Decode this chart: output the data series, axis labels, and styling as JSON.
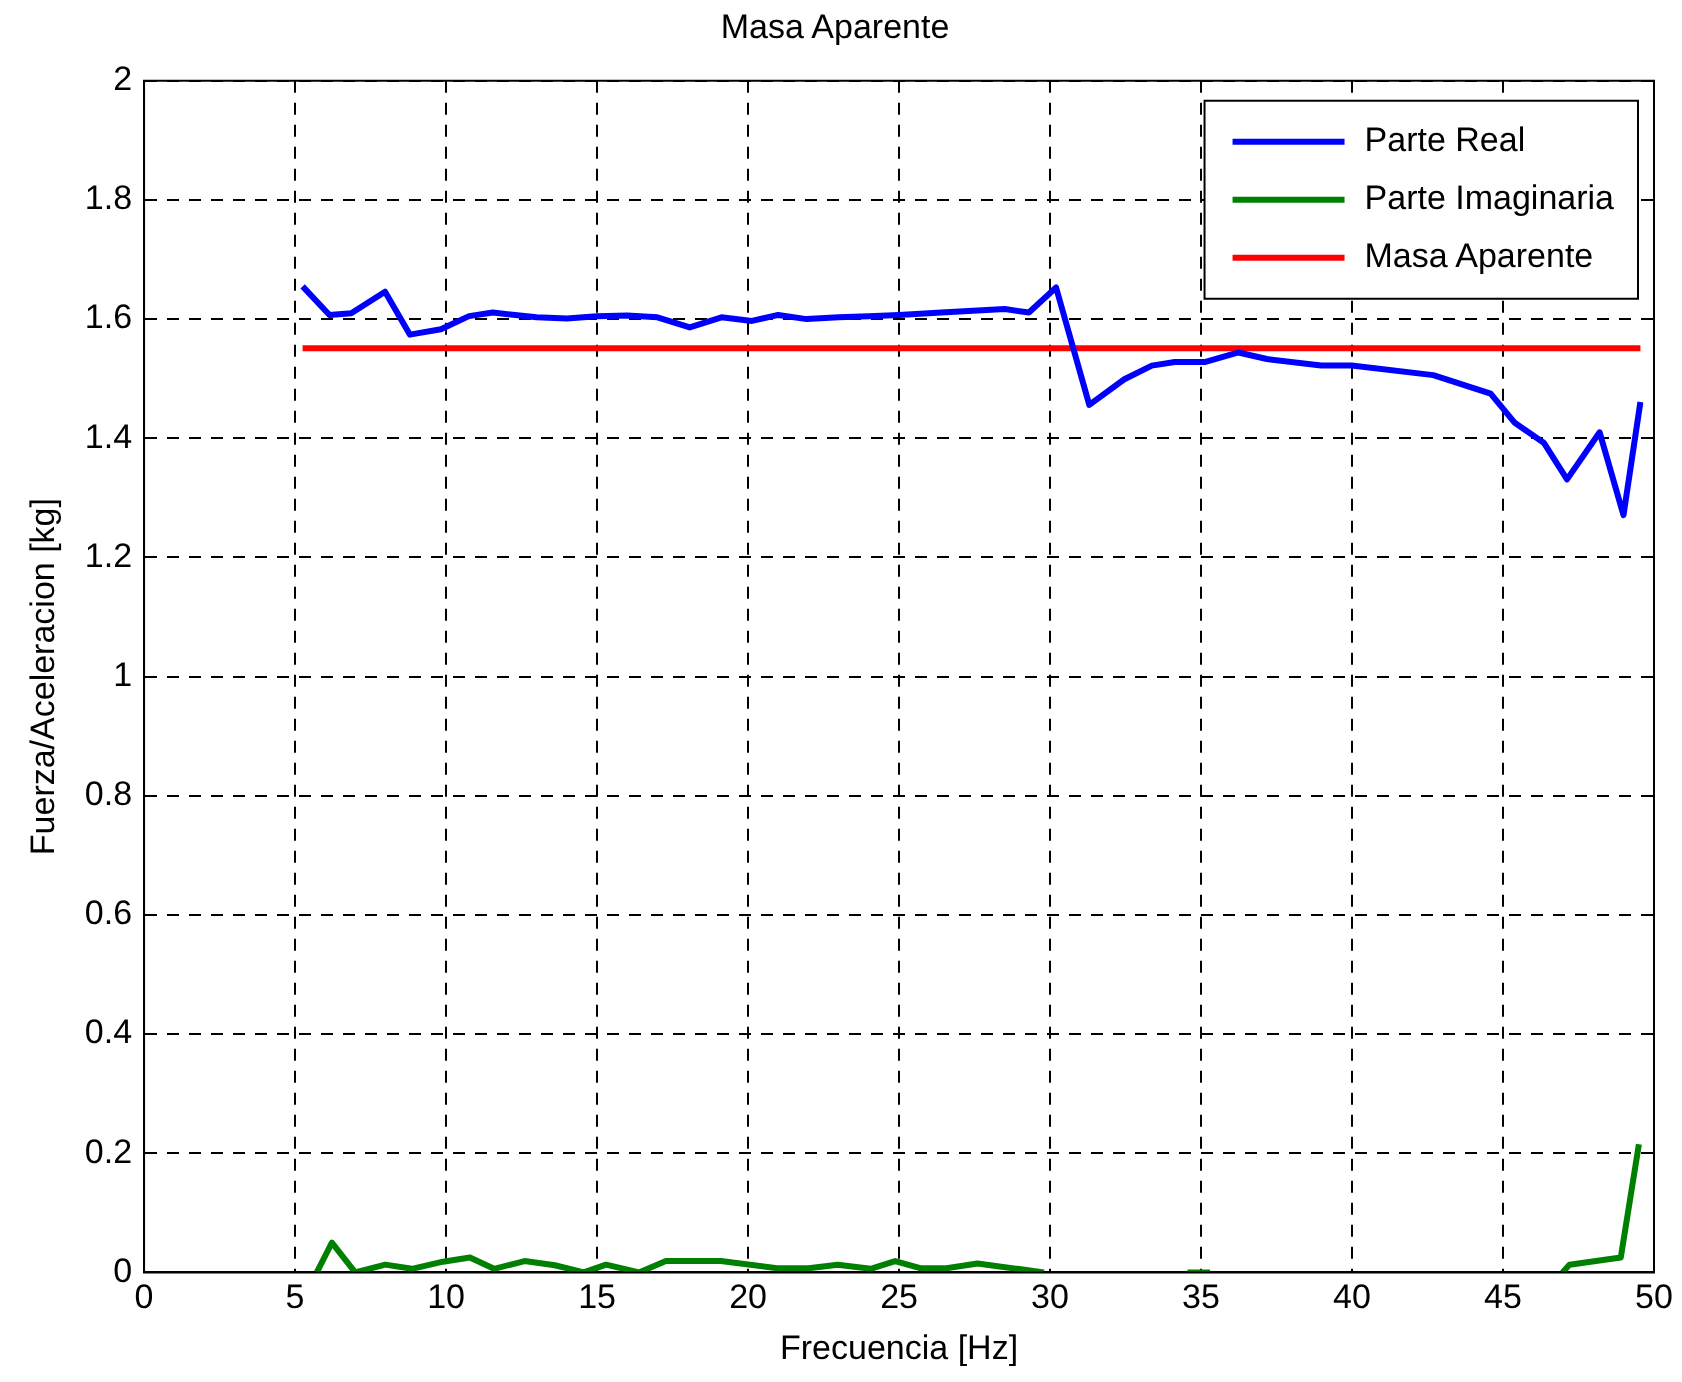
{
  "chart_data": {
    "type": "line",
    "title": "Masa Aparente",
    "xlabel": "Frecuencia [Hz]",
    "ylabel": "Fuerza/Aceleracion [kg]",
    "xlim": [
      0,
      50
    ],
    "xticks": [
      0,
      5,
      10,
      15,
      20,
      25,
      30,
      35,
      40,
      45,
      50
    ],
    "ylim": [
      0,
      2
    ],
    "yticks": [
      0,
      0.2,
      0.4,
      0.6,
      0.8,
      1,
      1.2,
      1.4,
      1.6,
      1.8,
      2
    ],
    "grid": true,
    "legend": "top right",
    "line_style": "solid",
    "marker": "none",
    "series": [
      {
        "name": "Parte Real",
        "color": "#0000ff",
        "x": [
          5.25,
          6.14,
          6.86,
          7.98,
          8.8,
          9.83,
          10.76,
          11.55,
          13,
          14,
          15,
          16,
          17,
          18.07,
          19.12,
          20.13,
          21,
          21.94,
          23,
          24,
          25,
          26.4,
          28.5,
          29.3,
          30.2,
          31.3,
          32.46,
          33.37,
          34.13,
          35.12,
          36.24,
          37.18,
          38.98,
          39.99,
          42.69,
          44.59,
          45.39,
          46.36,
          47.12,
          48.2,
          48.99,
          49.55
        ],
        "values": [
          1.655,
          1.607,
          1.61,
          1.646,
          1.574,
          1.583,
          1.605,
          1.611,
          1.603,
          1.601,
          1.605,
          1.606,
          1.603,
          1.586,
          1.603,
          1.597,
          1.607,
          1.6,
          1.603,
          1.605,
          1.607,
          1.611,
          1.617,
          1.611,
          1.653,
          1.456,
          1.499,
          1.522,
          1.528,
          1.528,
          1.544,
          1.533,
          1.522,
          1.522,
          1.506,
          1.475,
          1.426,
          1.392,
          1.331,
          1.41,
          1.271,
          1.461
        ]
      },
      {
        "name": "Parte Imaginaria",
        "color": "#008000",
        "x": [
          5.72,
          6.22,
          6.99,
          7.99,
          8.87,
          9.9,
          10.79,
          11.59,
          12.6,
          13.6,
          14.56,
          15.3,
          16.39,
          17.28,
          19.1,
          20.96,
          22,
          22.97,
          24.06,
          24.87,
          25.7,
          26.57,
          27.6,
          29.8,
          32,
          34.55,
          35.3,
          41,
          46.97,
          47.2,
          48.9,
          49.5
        ],
        "values": [
          0,
          0.05,
          0,
          0.013,
          0.006,
          0.018,
          0.025,
          0.006,
          0.019,
          0.012,
          0,
          0.013,
          0,
          0.019,
          0.019,
          0.007,
          0.007,
          0.013,
          0.006,
          0.019,
          0.007,
          0.007,
          0.015,
          0,
          null,
          0,
          0,
          null,
          0,
          0.013,
          0.025,
          0.215
        ]
      },
      {
        "name": "Masa Aparente",
        "color": "#ff0000",
        "x": [
          5.25,
          49.55
        ],
        "values": [
          1.551,
          1.551
        ]
      }
    ]
  }
}
